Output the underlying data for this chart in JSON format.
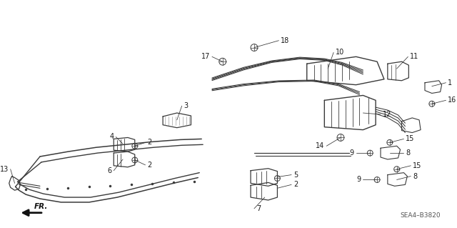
{
  "bg_color": "#ffffff",
  "line_color": "#3a3a3a",
  "label_color": "#1a1a1a",
  "code": "SEA4–B3820",
  "figsize": [
    6.4,
    3.19
  ],
  "dpi": 100
}
